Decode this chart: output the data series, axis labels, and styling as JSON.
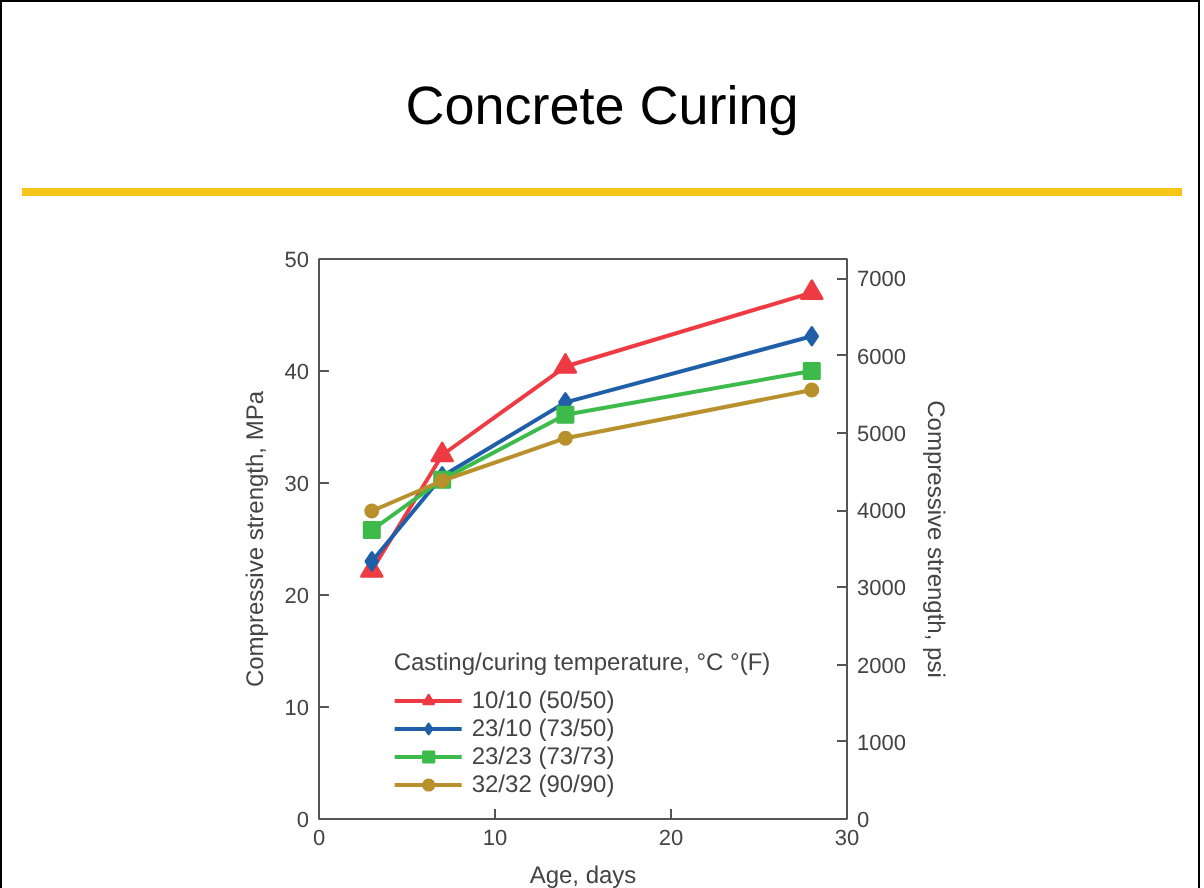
{
  "chart_data": {
    "type": "line",
    "title": "Concrete Curing",
    "xlabel": "Age, days",
    "ylabel": "Compressive strength, MPa",
    "y2label": "Compressive strength, psi",
    "legend_title": "Casting/curing temperature, °C °(F)",
    "x": [
      3,
      7,
      14,
      28
    ],
    "series": [
      {
        "name": "10/10 (50/50)",
        "color": "#ee3a43",
        "marker": "triangle",
        "values": [
          22.2,
          32.5,
          40.4,
          47.0
        ]
      },
      {
        "name": "23/10 (73/50)",
        "color": "#1f5fa8",
        "marker": "diamond",
        "values": [
          23.0,
          30.6,
          37.2,
          43.1
        ]
      },
      {
        "name": "23/23 (73/73)",
        "color": "#3dbb4a",
        "marker": "square",
        "values": [
          25.8,
          30.3,
          36.1,
          40.0
        ]
      },
      {
        "name": "32/32 (90/90)",
        "color": "#b8902c",
        "marker": "circle",
        "values": [
          27.5,
          30.2,
          34.0,
          38.3
        ]
      }
    ],
    "xlim": [
      0,
      30
    ],
    "xticks": [
      0,
      10,
      20,
      30
    ],
    "ylim": [
      0,
      50
    ],
    "yticks": [
      0,
      10,
      20,
      30,
      40,
      50
    ],
    "y2lim": [
      0,
      7252
    ],
    "y2ticks": [
      0,
      1000,
      2000,
      3000,
      4000,
      5000,
      6000,
      7000
    ],
    "grid": false,
    "legend": "bottom",
    "line_style": "solid"
  }
}
